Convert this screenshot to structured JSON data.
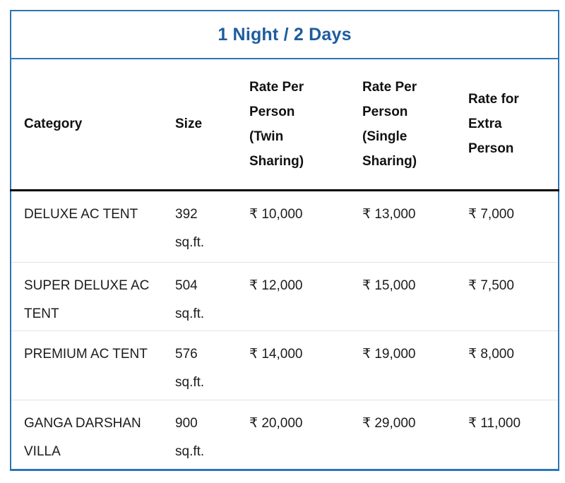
{
  "title": "1 Night / 2 Days",
  "colors": {
    "table_border_blue": "#2e75b6",
    "title_text_blue": "#1e5c9e",
    "header_divider_black": "#000000",
    "row_divider_gray": "#e2e2ec",
    "body_text": "#1c1c1c"
  },
  "table": {
    "columns": [
      {
        "label": "Category"
      },
      {
        "label": "Size"
      },
      {
        "label": "Rate Per Person (Twin Sharing)"
      },
      {
        "label": "Rate Per Person (Single Sharing)"
      },
      {
        "label": "Rate for Extra Person"
      }
    ],
    "rows": [
      {
        "category": "DELUXE AC TENT",
        "size_value": "392",
        "size_unit": "sq.ft.",
        "rate_twin": "₹ 10,000",
        "rate_single": "₹ 13,000",
        "rate_extra": "₹ 7,000"
      },
      {
        "category": "SUPER DELUXE AC TENT",
        "size_value": "504",
        "size_unit": "sq.ft.",
        "rate_twin": "₹ 12,000",
        "rate_single": "₹ 15,000",
        "rate_extra": "₹ 7,500"
      },
      {
        "category": "PREMIUM AC TENT",
        "size_value": "576",
        "size_unit": "sq.ft.",
        "rate_twin": "₹ 14,000",
        "rate_single": "₹ 19,000",
        "rate_extra": "₹ 8,000"
      },
      {
        "category": "GANGA DARSHAN VILLA",
        "size_value": "900",
        "size_unit": "sq.ft.",
        "rate_twin": "₹ 20,000",
        "rate_single": "₹ 29,000",
        "rate_extra": "₹ 11,000"
      }
    ]
  }
}
